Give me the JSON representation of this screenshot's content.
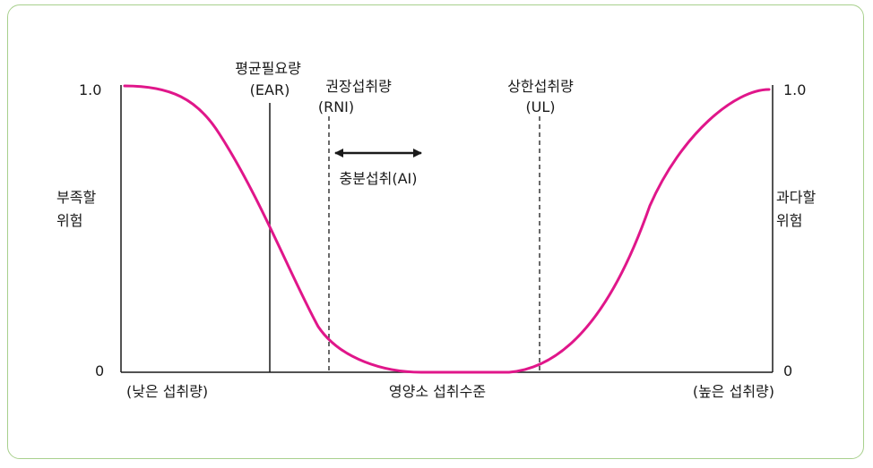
{
  "chart_data": {
    "type": "line",
    "x_axis_label": "영양소 섭취수준",
    "x_left_label": "(낮은 섭취량)",
    "x_right_label": "(높은 섭취량)",
    "y_left_label_line1": "부족할",
    "y_left_label_line2": "위험",
    "y_right_label_line1": "과다할",
    "y_right_label_line2": "위험",
    "y_left_ticks": [
      "1.0",
      "0"
    ],
    "y_right_ticks": [
      "1.0",
      "0"
    ],
    "y_range": [
      0,
      1
    ],
    "curve_color": "#e0168a",
    "markers": [
      {
        "name_line1": "평균필요량",
        "name_line2": "(EAR)",
        "style": "solid"
      },
      {
        "name_line1": "권장섭취량",
        "name_line2": "(RNI)",
        "style": "dashed"
      },
      {
        "name_line1": "상한섭취량",
        "name_line2": "(UL)",
        "style": "dashed"
      }
    ],
    "range_label": "충분섭취(AI)"
  },
  "colors": {
    "border": "#a8d08d",
    "curve": "#e0168a",
    "ink": "#1a1a1a"
  }
}
